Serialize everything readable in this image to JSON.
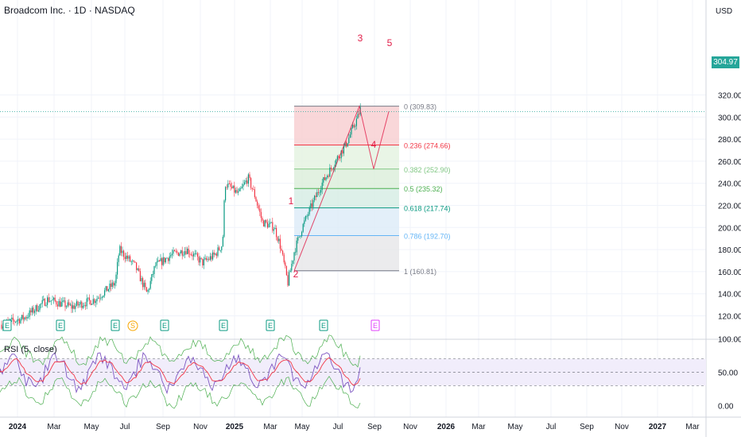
{
  "header": {
    "title": "Broadcom Inc. · 1D · NASDAQ",
    "currency": "USD"
  },
  "price_badge": "304.97",
  "rsi": {
    "title": "RSI (5, close)"
  },
  "chart_data": {
    "type": "candlestick",
    "x_labels": [
      "2024",
      "Mar",
      "May",
      "Jul",
      "Sep",
      "Nov",
      "2025",
      "Mar",
      "May",
      "Jul",
      "Sep",
      "Nov",
      "2026",
      "Mar",
      "May",
      "Jul",
      "Sep",
      "Nov",
      "2027",
      "Mar"
    ],
    "x_label_bold": [
      "2024",
      "2025",
      "2026",
      "2027"
    ],
    "y_ticks": [
      120,
      140,
      160,
      180,
      200,
      220,
      240,
      260,
      280,
      300,
      320
    ],
    "rsi_ticks": [
      "100.00",
      "50.00",
      "0.00"
    ],
    "last_price": 304.97,
    "fib_levels": [
      {
        "ratio": "0",
        "price": 309.83,
        "label": "0 (309.83)",
        "color": "#787b86",
        "fill": "#f8cdd0"
      },
      {
        "ratio": "0.236",
        "price": 274.66,
        "label": "0.236 (274.66)",
        "color": "#f23645",
        "fill": "#e3f2e0"
      },
      {
        "ratio": "0.382",
        "price": 252.9,
        "label": "0.382 (252.90)",
        "color": "#81c784",
        "fill": "#dbeed9"
      },
      {
        "ratio": "0.5",
        "price": 235.32,
        "label": "0.5 (235.32)",
        "color": "#4caf50",
        "fill": "#d4ece4"
      },
      {
        "ratio": "0.618",
        "price": 217.74,
        "label": "0.618 (217.74)",
        "color": "#089981",
        "fill": "#dcebf8"
      },
      {
        "ratio": "0.786",
        "price": 192.7,
        "label": "0.786 (192.70)",
        "color": "#64b5f6",
        "fill": "#e6e6e8"
      },
      {
        "ratio": "1",
        "price": 160.81,
        "label": "1 (160.81)",
        "color": "#787b86",
        "fill": null
      }
    ],
    "wave_labels": [
      "1",
      "2",
      "3",
      "4",
      "5"
    ],
    "wave_color": "#e11d48",
    "earnings_markers": [
      "E",
      "S",
      "E",
      "E",
      "E",
      "E",
      "E"
    ],
    "colors": {
      "up": "#089981",
      "down": "#f23645",
      "rsi": "#7e57c2",
      "rsi_ma": "#f23645",
      "band": "#4caf50"
    }
  }
}
